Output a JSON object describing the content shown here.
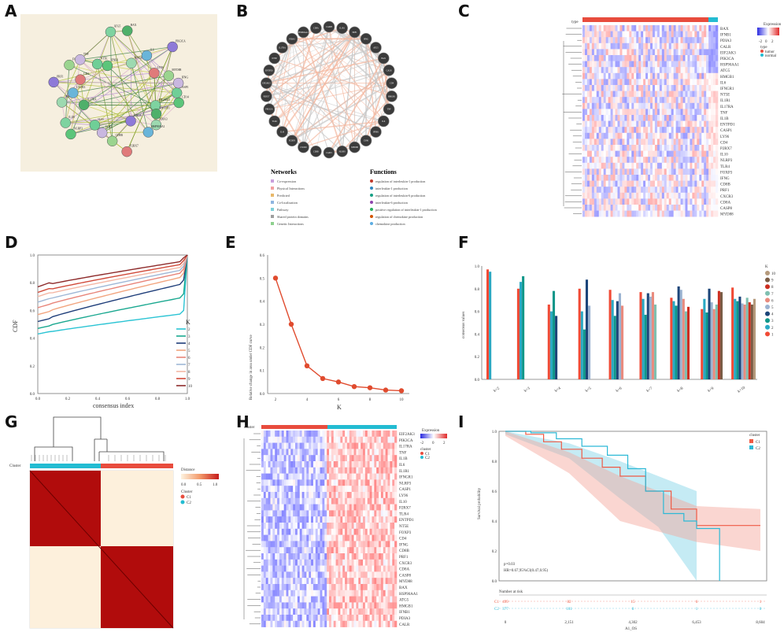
{
  "figure": {
    "panel_labels": [
      "A",
      "B",
      "C",
      "D",
      "E",
      "F",
      "G",
      "H",
      "I"
    ]
  },
  "panelA": {
    "nodes": [
      "CASP1",
      "CD14",
      "EIF2AK3",
      "ENTPD1",
      "PDIA3",
      "HSP90AA1",
      "CALR",
      "P2RX7",
      "CD8B",
      "TLR4",
      "IL10",
      "NLRP3",
      "IL1B",
      "IL17RA",
      "IFNGR1",
      "CXCR3",
      "PRF1",
      "CD4",
      "FOXP3",
      "TNF",
      "NT5E",
      "IFNB1",
      "ATG5",
      "BAX",
      "HMGB1",
      "IL6",
      "PIK3CA",
      "LY96",
      "MYD88",
      "IFNG"
    ]
  },
  "panelB": {
    "nodes": [
      "CASP8",
      "IL1R1",
      "PRF1",
      "IFNG",
      "ATG5",
      "BAX",
      "CALR",
      "CD4",
      "HMGB1",
      "TNF",
      "IL6",
      "IFNB1",
      "LY96",
      "MYD88",
      "NLRP3",
      "CASP1",
      "CD8B",
      "CXCR3",
      "FOXP3",
      "IL10",
      "TLR4",
      "PIK3CA",
      "P2RX7",
      "EIF2AK3",
      "ENTPD1",
      "NT5E",
      "IL17RA",
      "PDIA3",
      "HSP90AA1",
      "CD8A"
    ],
    "networks_title": "Networks",
    "networks": [
      "Co-expression",
      "Physical Interactions",
      "Predicted",
      "Co-localization",
      "Pathway",
      "Shared protein domains",
      "Genetic Interactions"
    ],
    "functions_title": "Functions",
    "functions": [
      "regulation of interleukin-1 production",
      "interleukin-1 production",
      "regulation of interleukin-6 production",
      "interleukin-6 production",
      "positive regulation of interleukin-1 production",
      "regulation of chemokine production",
      "chemokine production"
    ]
  },
  "panelC": {
    "type_label": "type",
    "genes": [
      "BAX",
      "IFNB1",
      "PDIA3",
      "CALR",
      "EIF2AK3",
      "PIK3CA",
      "HSP90AA1",
      "ATG5",
      "HMGB1",
      "IL6",
      "IFNGR1",
      "NT5E",
      "IL1R1",
      "IL17RA",
      "TNF",
      "IL1B",
      "ENTPD1",
      "CASP1",
      "LY96",
      "CD4",
      "P2RX7",
      "IL10",
      "NLRP3",
      "TLR4",
      "FOXP3",
      "IFNG",
      "CD8B",
      "PRF1",
      "CXCR3",
      "CD8A",
      "CASP8",
      "MYD88"
    ],
    "legend_title": "Expression",
    "legend_ticks": [
      "-2",
      "0",
      "2"
    ],
    "type_title": "type",
    "type_items": [
      "tumor",
      "normal"
    ]
  },
  "panelD": {
    "ylabel": "CDF",
    "xlabel": "consensus index",
    "x_ticks": [
      "0.0",
      "0.2",
      "0.4",
      "0.6",
      "0.8",
      "1.0"
    ],
    "y_ticks": [
      "0.0",
      "0.2",
      "0.4",
      "0.6",
      "0.8",
      "1.0"
    ],
    "legend_title": "K",
    "legend": [
      "2",
      "3",
      "4",
      "5",
      "6",
      "7",
      "8",
      "9",
      "10"
    ],
    "colors": [
      "#2bc4d4",
      "#1aa890",
      "#1f3e7a",
      "#f2a57f",
      "#e8857a",
      "#9fb7d6",
      "#f4b7a5",
      "#d04a3a",
      "#8e2c2c"
    ]
  },
  "panelE": {
    "ylabel": "Relative change in area under CDF curve",
    "xlabel": "K",
    "x": [
      2,
      3,
      4,
      5,
      6,
      7,
      8,
      9,
      10
    ],
    "y": [
      0.5,
      0.3,
      0.12,
      0.065,
      0.05,
      0.03,
      0.025,
      0.015,
      0.012
    ],
    "x_ticks": [
      "2",
      "4",
      "6",
      "8",
      "10"
    ],
    "y_ticks": [
      "0.0",
      "0.1",
      "0.2",
      "0.3",
      "0.4",
      "0.5",
      "0.6"
    ],
    "color": "#e04b2e"
  },
  "panelF": {
    "ylabel": "consensus values",
    "categories": [
      "k=2",
      "k=3",
      "k=4",
      "k=5",
      "k=6",
      "k=7",
      "k=8",
      "k=9",
      "k=10"
    ],
    "y_ticks": [
      "0.0",
      "0.2",
      "0.4",
      "0.6",
      "0.8",
      "1.0"
    ],
    "legend_title": "K",
    "legend": [
      "10",
      "9",
      "8",
      "7",
      "6",
      "5",
      "4",
      "3",
      "2",
      "1"
    ],
    "colors": [
      "#f14a35",
      "#2aa9c4",
      "#11978a",
      "#1c4579",
      "#9bb3d1",
      "#e98b7e",
      "#7fbfb0",
      "#cc2d1f",
      "#7a5c45",
      "#b59a7c"
    ],
    "values": [
      [
        0.97,
        0.95
      ],
      [
        0.8,
        0.86,
        0.91
      ],
      [
        0.66,
        0.6,
        0.78,
        0.56
      ],
      [
        0.8,
        0.6,
        0.44,
        0.88,
        0.65
      ],
      [
        0.79,
        0.7,
        0.56,
        0.69,
        0.76,
        0.65
      ],
      [
        0.77,
        0.71,
        0.57,
        0.76,
        0.73,
        0.77,
        0.66
      ],
      [
        0.72,
        0.69,
        0.65,
        0.82,
        0.79,
        0.71,
        0.6,
        0.64
      ],
      [
        0.62,
        0.71,
        0.59,
        0.8,
        0.68,
        0.62,
        0.66,
        0.78,
        0.77
      ],
      [
        0.81,
        0.71,
        0.69,
        0.73,
        0.67,
        0.66,
        0.72,
        0.68,
        0.66,
        0.71
      ]
    ]
  },
  "panelG": {
    "cluster_label": "Cluster",
    "legend_title": "Distance",
    "legend_ticks": [
      "0.0",
      "0.5",
      "1.0"
    ],
    "cluster_title": "Cluster",
    "clusters": [
      "C1",
      "C2"
    ],
    "cluster_colors": [
      "#e84c3d",
      "#23bcd2"
    ]
  },
  "panelH": {
    "cluster_label": "cluster",
    "genes": [
      "EIF2AK3",
      "PIK3CA",
      "IL17RA",
      "TNF",
      "IL1B",
      "IL6",
      "IL1R1",
      "IFNGR1",
      "NLRP3",
      "CASP1",
      "LY96",
      "IL10",
      "P2RX7",
      "TLR4",
      "ENTPD1",
      "NT5E",
      "FOXP3",
      "CD4",
      "IFNG",
      "CD8B",
      "PRF1",
      "CXCR3",
      "CD8A",
      "CASP8",
      "MYD88",
      "BAX",
      "HSP90AA1",
      "ATG5",
      "HMGB1",
      "IFNB1",
      "PDIA3",
      "CALR"
    ],
    "legend_title": "Expression",
    "legend_ticks": [
      "-2",
      "0",
      "2"
    ],
    "cluster_title": "cluster",
    "clusters": [
      "C1",
      "C2"
    ]
  },
  "panelI": {
    "ylabel": "Survival probability",
    "xlabel": "A1_OS",
    "y_ticks": [
      "0.0",
      "0.2",
      "0.4",
      "0.6",
      "0.8",
      "1.0"
    ],
    "x_ticks": [
      "0",
      "2,151",
      "4,302",
      "6,453",
      "8,604"
    ],
    "legend_title": "cluster",
    "legend": [
      "C1",
      "C2"
    ],
    "pvalue": "p=0.03",
    "hr": "HR=0.67,95%CI(0.47,0.95)",
    "risk_title": "Number at risk",
    "risk_rows": [
      {
        "name": "C1",
        "values": [
          "499",
          "82",
          "15",
          "6",
          "1"
        ]
      },
      {
        "name": "C2",
        "values": [
          "377",
          "101",
          "8",
          "1",
          "0"
        ]
      }
    ]
  }
}
